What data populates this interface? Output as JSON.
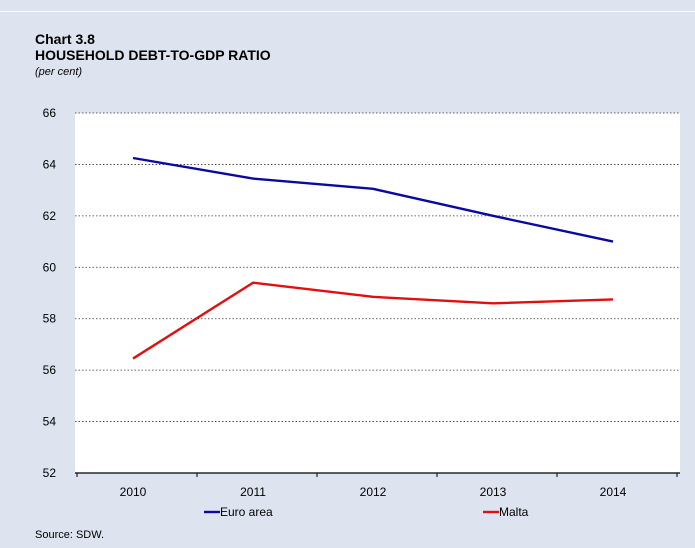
{
  "header": {
    "chart_number": "Chart 3.8",
    "title": "HOUSEHOLD DEBT-TO-GDP RATIO",
    "subtitle": "(per cent)"
  },
  "footer": {
    "source": "Source: SDW."
  },
  "chart_data": {
    "type": "line",
    "title": "HOUSEHOLD DEBT-TO-GDP RATIO",
    "subtitle": "(per cent)",
    "x": [
      "2010",
      "2011",
      "2012",
      "2013",
      "2014"
    ],
    "ylim": [
      52,
      66
    ],
    "yticks": [
      52,
      54,
      56,
      58,
      60,
      62,
      64,
      66
    ],
    "grid": true,
    "legend_position": "bottom",
    "series": [
      {
        "name": "Euro area",
        "color": "#0a0aa0",
        "values": [
          64.25,
          63.45,
          63.05,
          62.0,
          61.0
        ]
      },
      {
        "name": "Malta",
        "color": "#e01010",
        "values": [
          56.45,
          59.4,
          58.85,
          58.6,
          58.75
        ]
      }
    ]
  }
}
